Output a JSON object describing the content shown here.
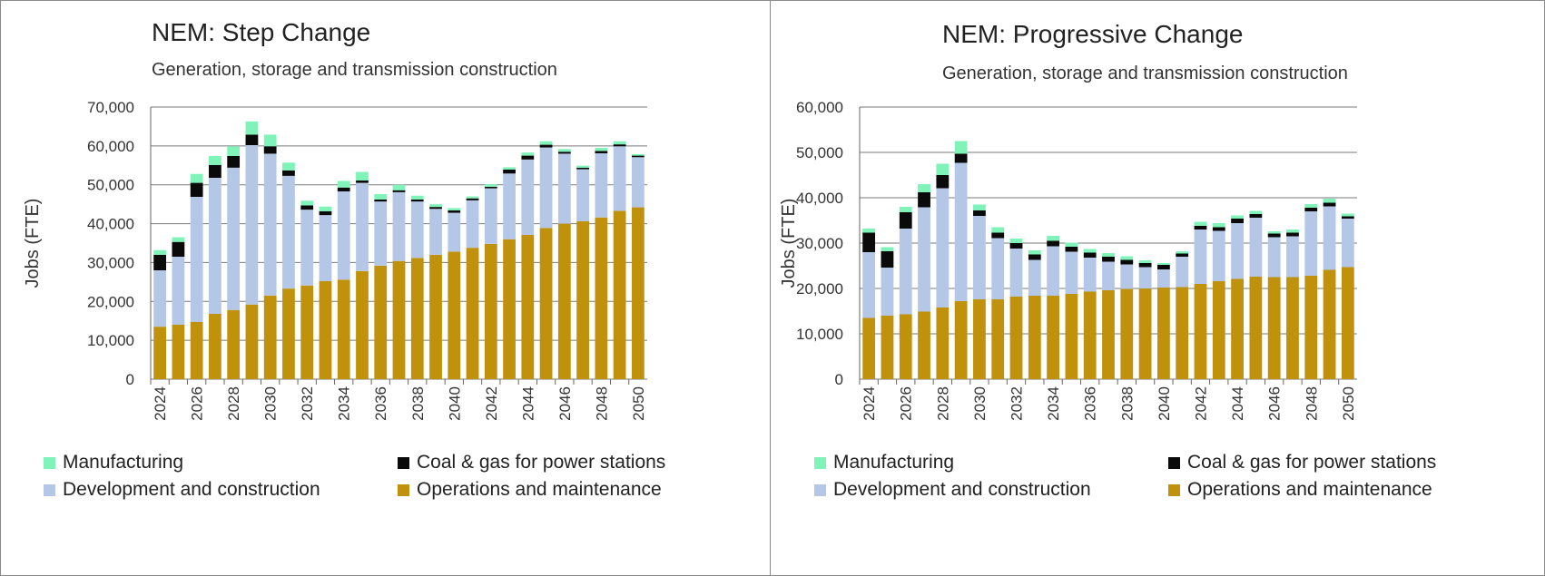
{
  "colors": {
    "manufacturing": "#7ff3b8",
    "coal_gas": "#0a0a0a",
    "development": "#b5c7e7",
    "operations": "#c0920b",
    "grid": "#7a7a7a"
  },
  "legend": [
    {
      "key": "manufacturing",
      "label": "Manufacturing"
    },
    {
      "key": "coal_gas",
      "label": "Coal & gas for power stations"
    },
    {
      "key": "development",
      "label": "Development and construction"
    },
    {
      "key": "operations",
      "label": "Operations and maintenance"
    }
  ],
  "chart_data": [
    {
      "type": "bar",
      "stacked": true,
      "title": "NEM: Step Change",
      "subtitle": "Generation, storage and transmission construction",
      "ylabel": "Jobs (FTE)",
      "xlabel": "",
      "ylim": [
        0,
        70000
      ],
      "yticks": [
        0,
        10000,
        20000,
        30000,
        40000,
        50000,
        60000,
        70000
      ],
      "ytick_labels": [
        "0",
        "10,000",
        "20,000",
        "30,000",
        "40,000",
        "50,000",
        "60,000",
        "70,000"
      ],
      "categories": [
        2024,
        2025,
        2026,
        2027,
        2028,
        2029,
        2030,
        2031,
        2032,
        2033,
        2034,
        2035,
        2036,
        2037,
        2038,
        2039,
        2040,
        2041,
        2042,
        2043,
        2044,
        2045,
        2046,
        2047,
        2048,
        2049,
        2050
      ],
      "xtick_labels": [
        "2024",
        "2026",
        "2028",
        "2030",
        "2032",
        "2034",
        "2036",
        "2038",
        "2040",
        "2042",
        "2044",
        "2046",
        "2048",
        "2050"
      ],
      "grid": true,
      "legend_position": "bottom",
      "series": [
        {
          "name": "Operations and maintenance",
          "key": "operations",
          "values": [
            13500,
            14000,
            14700,
            16800,
            17800,
            19200,
            21500,
            23300,
            24100,
            25200,
            25600,
            27800,
            29200,
            30400,
            31200,
            32000,
            32800,
            33800,
            34800,
            36000,
            37100,
            38900,
            40000,
            40600,
            41600,
            43300,
            44200
          ]
        },
        {
          "name": "Development and construction",
          "key": "development",
          "values": [
            14500,
            17500,
            32200,
            35000,
            36600,
            41000,
            36500,
            29000,
            19500,
            17000,
            22700,
            22700,
            16500,
            17700,
            14500,
            11800,
            10000,
            12200,
            14300,
            16900,
            19400,
            20700,
            18000,
            13400,
            16500,
            16600,
            12900
          ]
        },
        {
          "name": "Coal & gas for power stations",
          "key": "coal_gas",
          "values": [
            4000,
            3800,
            3600,
            3300,
            3000,
            2700,
            1900,
            1400,
            1100,
            1000,
            1000,
            600,
            500,
            500,
            500,
            500,
            600,
            500,
            400,
            1000,
            1000,
            700,
            500,
            400,
            600,
            500,
            400
          ]
        },
        {
          "name": "Manufacturing",
          "key": "manufacturing",
          "values": [
            1200,
            1200,
            2300,
            2300,
            2500,
            3400,
            3000,
            2000,
            1200,
            1200,
            1700,
            2200,
            1400,
            1400,
            1000,
            700,
            600,
            500,
            600,
            600,
            800,
            900,
            700,
            500,
            800,
            800,
            400
          ]
        }
      ]
    },
    {
      "type": "bar",
      "stacked": true,
      "title": "NEM: Progressive Change",
      "subtitle": "Generation, storage and transmission construction",
      "ylabel": "Jobs (FTE)",
      "xlabel": "",
      "ylim": [
        0,
        60000
      ],
      "yticks": [
        0,
        10000,
        20000,
        30000,
        40000,
        50000,
        60000
      ],
      "ytick_labels": [
        "0",
        "10,000",
        "20,000",
        "30,000",
        "40,000",
        "50,000",
        "60,000"
      ],
      "categories": [
        2024,
        2025,
        2026,
        2027,
        2028,
        2029,
        2030,
        2031,
        2032,
        2033,
        2034,
        2035,
        2036,
        2037,
        2038,
        2039,
        2040,
        2041,
        2042,
        2043,
        2044,
        2045,
        2046,
        2047,
        2048,
        2049,
        2050
      ],
      "xtick_labels": [
        "2024",
        "2026",
        "2028",
        "2030",
        "2032",
        "2034",
        "2036",
        "2038",
        "2040",
        "2042",
        "2044",
        "2046",
        "2048",
        "2050"
      ],
      "grid": true,
      "legend_position": "bottom",
      "series": [
        {
          "name": "Operations and maintenance",
          "key": "operations",
          "values": [
            13500,
            14000,
            14300,
            14900,
            15800,
            17200,
            17600,
            17600,
            18200,
            18400,
            18400,
            18800,
            19300,
            19600,
            19900,
            20000,
            20200,
            20300,
            21000,
            21600,
            22100,
            22600,
            22500,
            22500,
            22800,
            24100,
            24700
          ]
        },
        {
          "name": "Development and construction",
          "key": "development",
          "values": [
            14500,
            10600,
            18900,
            23000,
            26300,
            30500,
            18400,
            13500,
            10600,
            7900,
            10900,
            9300,
            7500,
            6300,
            5400,
            4700,
            4000,
            6700,
            12000,
            11100,
            12300,
            13000,
            8800,
            9000,
            14200,
            14000,
            10700
          ]
        },
        {
          "name": "Coal & gas for power stations",
          "key": "coal_gas",
          "values": [
            4300,
            3600,
            3600,
            3300,
            2900,
            2000,
            1200,
            1200,
            1200,
            1200,
            1200,
            1100,
            1100,
            1100,
            1000,
            900,
            1000,
            700,
            800,
            800,
            1000,
            800,
            800,
            800,
            800,
            800,
            500
          ]
        },
        {
          "name": "Manufacturing",
          "key": "manufacturing",
          "values": [
            900,
            900,
            1200,
            1800,
            2500,
            2800,
            1300,
            1200,
            1000,
            900,
            1100,
            900,
            800,
            800,
            800,
            600,
            400,
            500,
            900,
            900,
            700,
            700,
            500,
            700,
            800,
            900,
            600
          ]
        }
      ]
    }
  ]
}
